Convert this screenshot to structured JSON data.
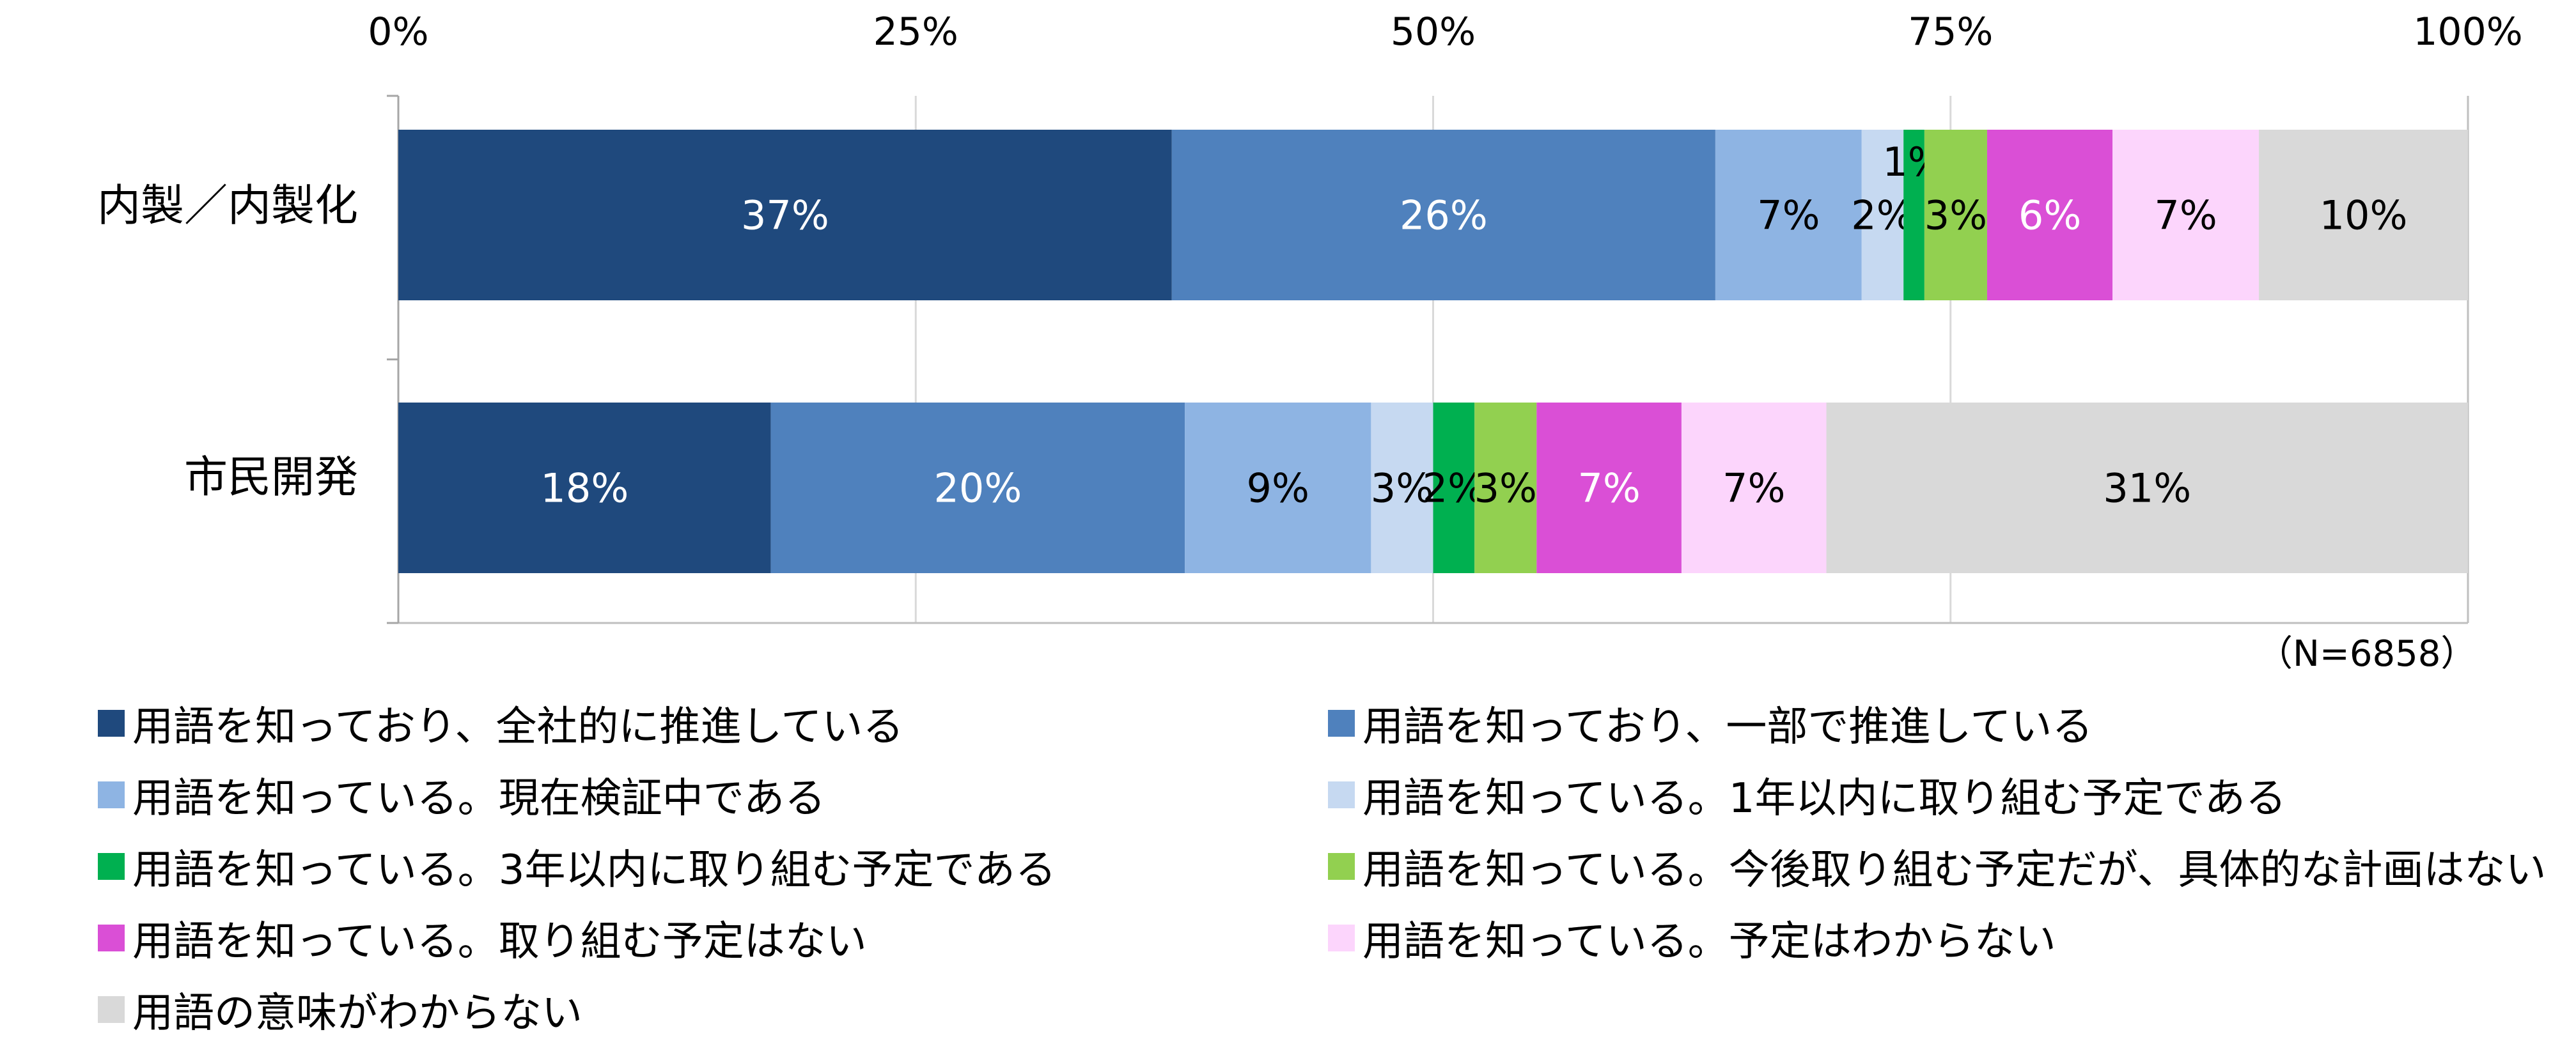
{
  "chart_data": {
    "type": "bar",
    "orientation": "horizontal",
    "stacked": true,
    "percent": true,
    "categories": [
      "内製／内製化",
      "市民開発"
    ],
    "xlim": [
      0,
      100
    ],
    "x_ticks": [
      "0%",
      "25%",
      "50%",
      "75%",
      "100%"
    ],
    "grid": true,
    "legend_position": "bottom",
    "note": "（N=6858）",
    "series": [
      {
        "name": "用語を知っており、全社的に推進している",
        "color": "#1F497D",
        "label_color": "#ffffff",
        "values": [
          37,
          18
        ],
        "labels": [
          "37%",
          "18%"
        ]
      },
      {
        "name": "用語を知っており、一部で推進している",
        "color": "#4F81BD",
        "label_color": "#ffffff",
        "values": [
          26,
          20
        ],
        "labels": [
          "26%",
          "20%"
        ]
      },
      {
        "name": "用語を知っている。現在検証中である",
        "color": "#8EB4E3",
        "label_color": "#000000",
        "values": [
          7,
          9
        ],
        "labels": [
          "7%",
          "9%"
        ]
      },
      {
        "name": "用語を知っている。1年以内に取り組む予定である",
        "color": "#C6D9F1",
        "label_color": "#000000",
        "values": [
          2,
          3
        ],
        "labels": [
          "2%",
          "3%"
        ]
      },
      {
        "name": "用語を知っている。3年以内に取り組む予定である",
        "color": "#00B050",
        "label_color": "#000000",
        "values": [
          1,
          2
        ],
        "labels": [
          "1%",
          "2%"
        ]
      },
      {
        "name": "用語を知っている。今後取り組む予定だが、具体的な計画はない",
        "color": "#92D050",
        "label_color": "#000000",
        "values": [
          3,
          3
        ],
        "labels": [
          "3%",
          "3%"
        ]
      },
      {
        "name": "用語を知っている。取り組む予定はない",
        "color": "#DA4FD6",
        "label_color": "#ffffff",
        "values": [
          6,
          7
        ],
        "labels": [
          "6%",
          "7%"
        ]
      },
      {
        "name": "用語を知っている。予定はわからない",
        "color": "#FCD5FC",
        "label_color": "#000000",
        "values": [
          7,
          7
        ],
        "labels": [
          "7%",
          "7%"
        ]
      },
      {
        "name": "用語の意味がわからない",
        "color": "#D9D9D9",
        "label_color": "#000000",
        "values": [
          10,
          31
        ],
        "labels": [
          "10%",
          "31%"
        ]
      }
    ]
  }
}
